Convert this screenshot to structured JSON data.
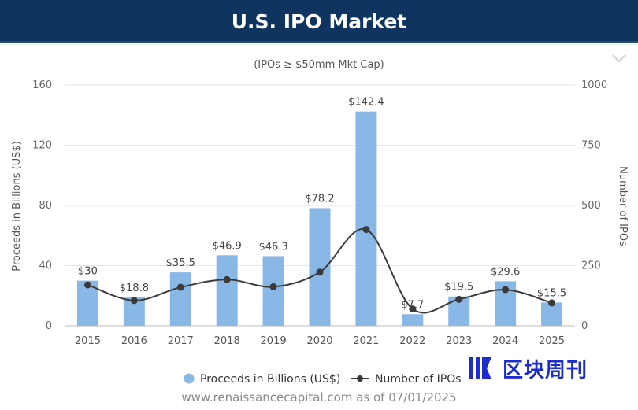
{
  "header": {
    "title": "U.S. IPO Market"
  },
  "chart_data": {
    "type": "bar",
    "subtitle": "(IPOs ≥ $50mm Mkt Cap)",
    "categories": [
      "2015",
      "2016",
      "2017",
      "2018",
      "2019",
      "2020",
      "2021",
      "2022",
      "2023",
      "2024",
      "2025"
    ],
    "series": [
      {
        "name": "Proceeds in Billions (US$)",
        "type": "bar",
        "axis": "left",
        "color": "#8ab8e6",
        "values": [
          30,
          18.8,
          35.5,
          46.9,
          46.3,
          78.2,
          142.4,
          7.7,
          19.5,
          29.6,
          15.5
        ],
        "labels": [
          "$30",
          "$18.8",
          "$35.5",
          "$46.9",
          "$46.3",
          "$78.2",
          "$142.4",
          "$7.7",
          "$19.5",
          "$29.6",
          "$15.5"
        ]
      },
      {
        "name": "Number of IPOs",
        "type": "line",
        "axis": "right",
        "color": "#3a3a3a",
        "values": [
          170,
          105,
          160,
          192,
          162,
          223,
          400,
          70,
          110,
          150,
          95
        ]
      }
    ],
    "ylabel": "Proceeds in Billions (US$)",
    "y2label": "Number of IPOs",
    "ylim": [
      0,
      160
    ],
    "y2lim": [
      0,
      1000
    ],
    "yticks": [
      "0",
      "40",
      "80",
      "120",
      "160"
    ],
    "y2ticks": [
      "0",
      "250",
      "500",
      "750",
      "1000"
    ],
    "legend": "bottom"
  },
  "source": "www.renaissancecapital.com as of 07/01/2025",
  "watermark": {
    "text": "区块周刊"
  },
  "colors": {
    "header_bg": "#0f3460",
    "bar": "#8ab8e6",
    "line": "#3a3a3a"
  }
}
